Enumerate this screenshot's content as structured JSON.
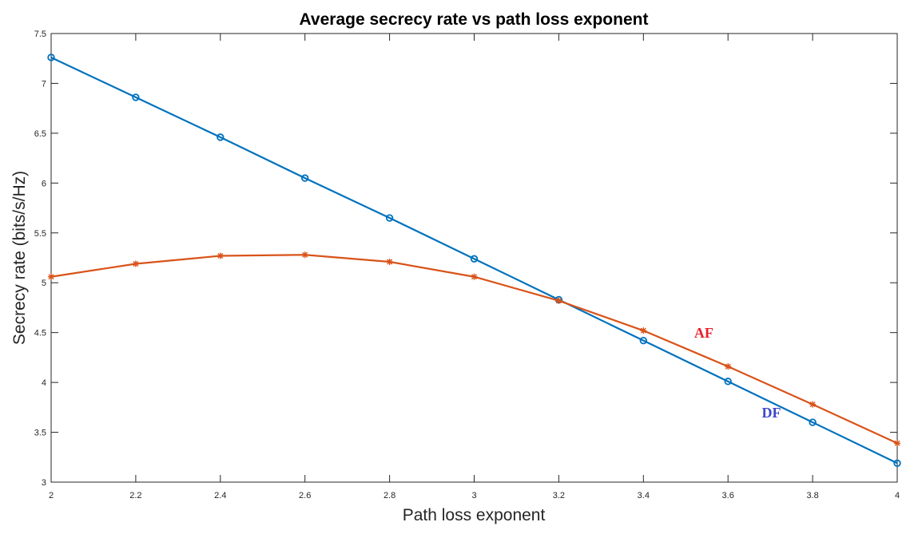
{
  "chart_data": {
    "type": "line",
    "title": "Average secrecy rate vs path loss exponent",
    "xlabel": "Path loss exponent",
    "ylabel": "Secrecy rate (bits/s/Hz)",
    "xlim": [
      2,
      4
    ],
    "ylim": [
      3,
      7.5
    ],
    "x": [
      2,
      2.2,
      2.4,
      2.6,
      2.8,
      3,
      3.2,
      3.4,
      3.6,
      3.8,
      4
    ],
    "xticks": [
      "2",
      "2.2",
      "2.4",
      "2.6",
      "2.8",
      "3",
      "3.2",
      "3.4",
      "3.6",
      "3.8",
      "4"
    ],
    "yticks": [
      "3",
      "3.5",
      "4",
      "4.5",
      "5",
      "5.5",
      "6",
      "6.5",
      "7",
      "7.5"
    ],
    "grid": false,
    "series": [
      {
        "key": "df",
        "color": "#0072BD",
        "marker": "circle",
        "values": [
          7.26,
          6.86,
          6.46,
          6.05,
          5.65,
          5.24,
          4.83,
          4.42,
          4.01,
          3.6,
          3.19
        ]
      },
      {
        "key": "af",
        "color": "#D95319",
        "marker": "star",
        "values": [
          5.06,
          5.19,
          5.27,
          5.28,
          5.21,
          5.06,
          4.82,
          4.52,
          4.16,
          3.78,
          3.39
        ]
      }
    ],
    "annotations": [
      {
        "text": "AF",
        "x": 3.52,
        "y": 4.45,
        "color": "#E8202A"
      },
      {
        "text": "DF",
        "x": 3.68,
        "y": 3.65,
        "color": "#3F48CC"
      }
    ]
  }
}
